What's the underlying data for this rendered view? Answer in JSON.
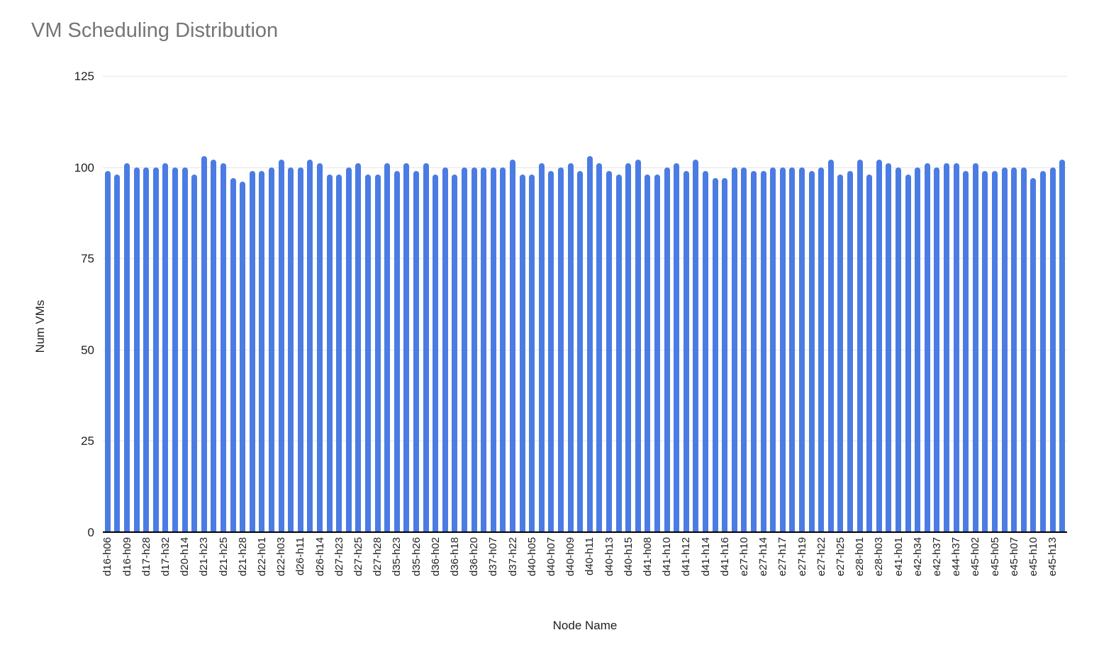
{
  "chart_data": {
    "type": "bar",
    "title": "VM Scheduling Distribution",
    "xlabel": "Node Name",
    "ylabel": "Num VMs",
    "ylim": [
      0,
      125
    ],
    "yticks": [
      0,
      25,
      50,
      75,
      100,
      125
    ],
    "grid": true,
    "legend": "none",
    "x_label_step": 2,
    "x_tick_labels": [
      "d16-h06",
      "d16-h09",
      "d17-h28",
      "d17-h32",
      "d20-h14",
      "d21-h23",
      "d21-h25",
      "d21-h28",
      "d22-h01",
      "d22-h03",
      "d26-h11",
      "d26-h14",
      "d27-h23",
      "d27-h25",
      "d27-h28",
      "d35-h23",
      "d35-h26",
      "d36-h02",
      "d36-h18",
      "d36-h20",
      "d37-h07",
      "d37-h22",
      "d40-h05",
      "d40-h07",
      "d40-h09",
      "d40-h11",
      "d40-h13",
      "d40-h15",
      "d41-h08",
      "d41-h10",
      "d41-h12",
      "d41-h14",
      "d41-h16",
      "e27-h10",
      "e27-h14",
      "e27-h17",
      "e27-h19",
      "e27-h22",
      "e27-h25",
      "e28-h01",
      "e28-h03",
      "e41-h01",
      "e42-h34",
      "e42-h37",
      "e44-h37",
      "e45-h02",
      "e45-h05",
      "e45-h07",
      "e45-h10",
      "e45-h13"
    ],
    "values": [
      99,
      98,
      101,
      100,
      100,
      100,
      101,
      100,
      100,
      98,
      103,
      102,
      101,
      97,
      96,
      99,
      99,
      100,
      102,
      100,
      100,
      102,
      101,
      98,
      98,
      100,
      101,
      98,
      98,
      101,
      99,
      101,
      99,
      101,
      98,
      100,
      98,
      100,
      100,
      100,
      100,
      100,
      102,
      98,
      98,
      101,
      99,
      100,
      101,
      99,
      103,
      101,
      99,
      98,
      101,
      102,
      98,
      98,
      100,
      101,
      99,
      102,
      99,
      97,
      97,
      100,
      100,
      99,
      99,
      100,
      100,
      100,
      100,
      99,
      100,
      102,
      98,
      99,
      102,
      98,
      102,
      101,
      100,
      98,
      100,
      101,
      100,
      101,
      101,
      99,
      101,
      99,
      99,
      100,
      100,
      100,
      97,
      99,
      100,
      102
    ],
    "colors": {
      "bar": "#4b7ce3",
      "gridline": "#e6e6e6",
      "axis_line": "#000000",
      "tick_text": "#1f1f1f",
      "title_text": "#757575",
      "background": "#ffffff"
    }
  }
}
